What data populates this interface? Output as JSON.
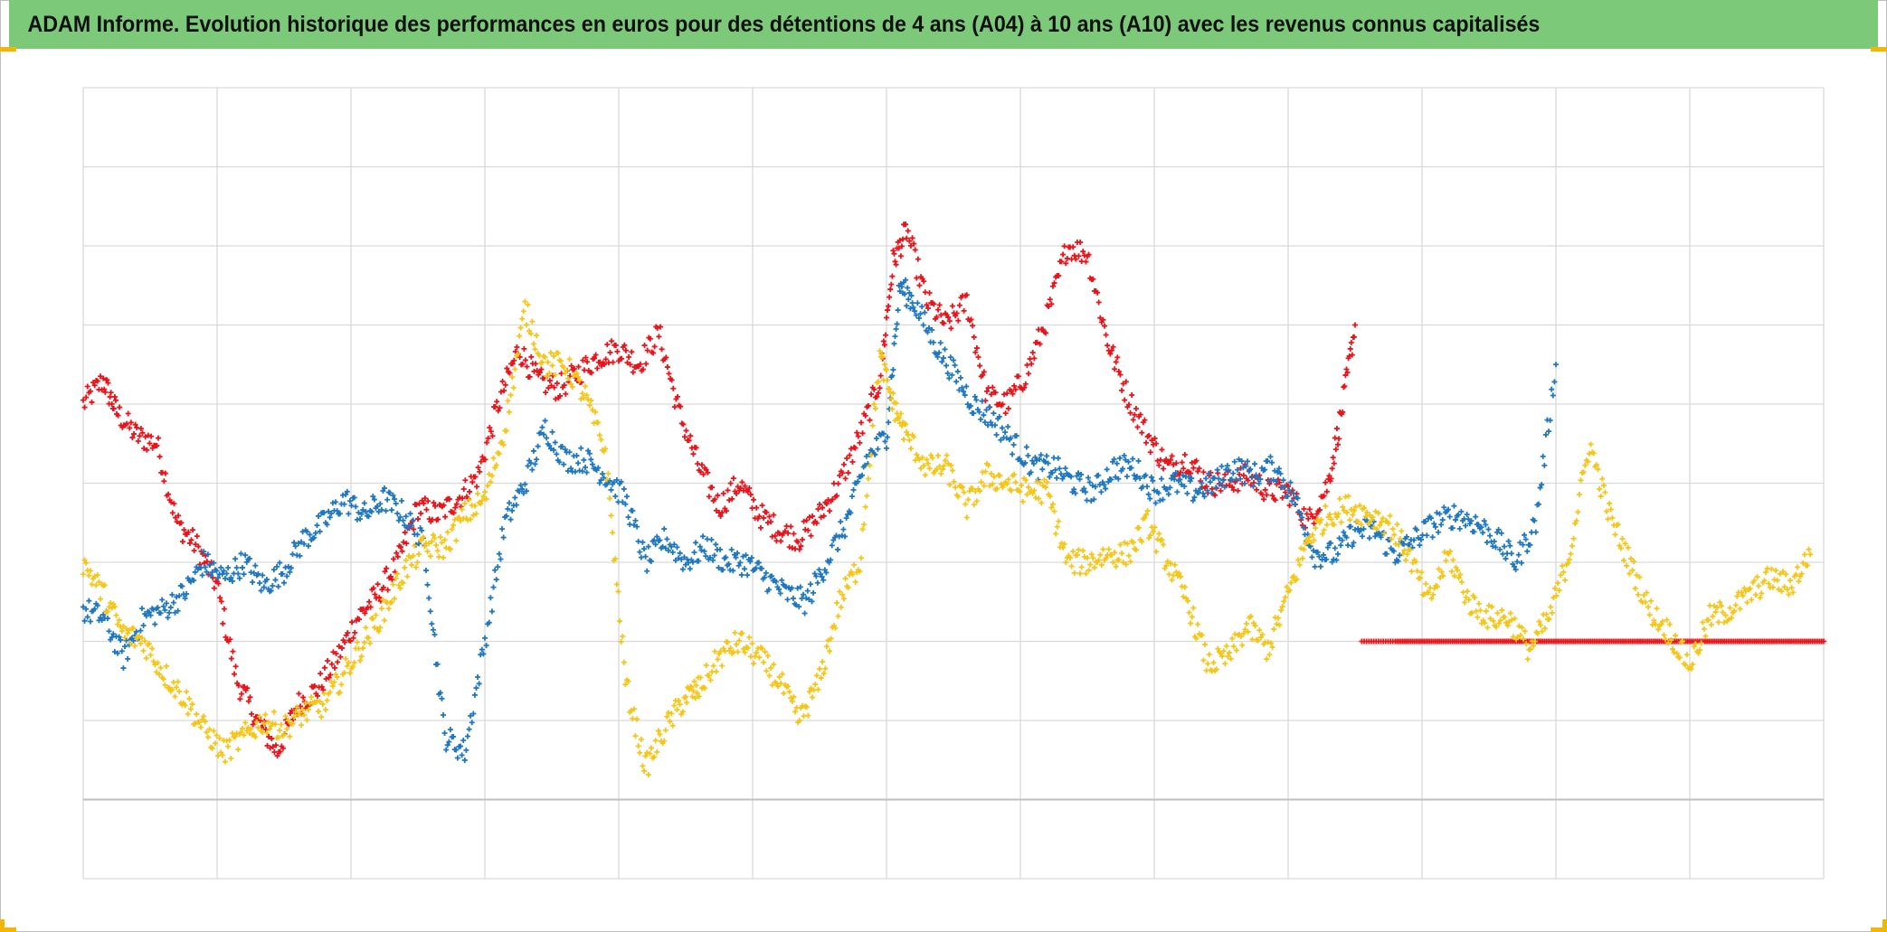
{
  "title": "ADAM Informe. Evolution historique des performances en euros pour des détentions de 4 ans (A04) à 10 ans (A10) avec les revenus connus capitalisés",
  "colors": {
    "title_bar": "#7dc97a",
    "grid": "#d9d9d9",
    "axis": "#bfbfbf",
    "accent_corner": "#f2b705"
  },
  "chart_data": {
    "type": "scatter",
    "marker": "plus",
    "title": "ADAM Informe. Evolution historique des performances en euros pour des détentions de 4 ans (A04) à 10 ans (A10) avec les revenus connus capitalisés",
    "xlabel": "",
    "ylabel": "",
    "xlim": [
      0,
      13
    ],
    "ylim": [
      -1,
      9
    ],
    "grid": true,
    "baseline_y": 0,
    "series": [
      {
        "name": "red",
        "color": "#e8141b",
        "x": [
          0.0,
          0.15,
          0.25,
          0.4,
          0.55,
          0.7,
          0.85,
          1.0,
          1.15,
          1.3,
          1.45,
          1.6,
          1.75,
          1.9,
          2.05,
          2.2,
          2.35,
          2.5,
          2.65,
          2.8,
          2.95,
          3.1,
          3.25,
          3.4,
          3.55,
          3.7,
          3.85,
          4.0,
          4.15,
          4.3,
          4.45,
          4.6,
          4.75,
          4.9,
          5.05,
          5.2,
          5.35,
          5.5,
          5.65,
          5.8,
          5.95,
          6.05,
          6.15,
          6.3,
          6.45,
          6.6,
          6.75,
          6.9,
          7.05,
          7.2,
          7.35,
          7.5,
          7.65,
          7.8,
          7.95,
          8.1,
          8.25,
          8.4,
          8.55,
          8.7,
          8.85,
          9.0,
          9.15,
          9.3,
          9.4,
          9.5
        ],
        "y": [
          5.0,
          5.3,
          4.9,
          4.6,
          4.5,
          3.5,
          3.2,
          2.7,
          1.5,
          1.0,
          0.6,
          1.2,
          1.4,
          1.8,
          2.3,
          2.6,
          3.0,
          3.7,
          3.6,
          3.8,
          4.1,
          5.0,
          5.7,
          5.3,
          5.2,
          5.4,
          5.6,
          5.7,
          5.5,
          5.9,
          4.9,
          4.2,
          3.7,
          4.0,
          3.6,
          3.4,
          3.3,
          3.6,
          4.0,
          4.6,
          5.3,
          6.8,
          7.2,
          6.3,
          6.0,
          6.3,
          5.1,
          5.0,
          5.4,
          6.1,
          7.0,
          6.9,
          5.8,
          5.1,
          4.6,
          4.2,
          4.3,
          4.0,
          4.0,
          4.1,
          3.9,
          3.9,
          3.5,
          4.0,
          4.9,
          6.0
        ]
      },
      {
        "name": "red_flat",
        "color": "#e8141b",
        "x": [
          9.55,
          9.8,
          10.0,
          10.2,
          10.4,
          10.6,
          10.8,
          11.0,
          11.2,
          11.4,
          11.6,
          11.8,
          12.0,
          12.2,
          12.4,
          12.6,
          12.8,
          13.0
        ],
        "y": [
          2.0,
          2.0,
          2.0,
          2.0,
          2.0,
          2.0,
          2.0,
          2.0,
          2.0,
          2.0,
          2.0,
          2.0,
          2.0,
          2.0,
          2.0,
          2.0,
          2.0,
          2.0
        ]
      },
      {
        "name": "blue",
        "color": "#1f77c0",
        "x": [
          0.0,
          0.15,
          0.3,
          0.45,
          0.6,
          0.75,
          0.9,
          1.05,
          1.2,
          1.35,
          1.5,
          1.65,
          1.8,
          1.95,
          2.1,
          2.25,
          2.4,
          2.55,
          2.7,
          2.85,
          3.0,
          3.15,
          3.3,
          3.45,
          3.6,
          3.75,
          3.9,
          4.05,
          4.2,
          4.35,
          4.5,
          4.65,
          4.8,
          4.95,
          5.1,
          5.25,
          5.4,
          5.55,
          5.7,
          5.85,
          6.0,
          6.1,
          6.2,
          6.35,
          6.5,
          6.65,
          6.8,
          6.95,
          7.1,
          7.25,
          7.4,
          7.55,
          7.7,
          7.85,
          8.0,
          8.15,
          8.3,
          8.45,
          8.6,
          8.75,
          8.9,
          9.05,
          9.2,
          9.35,
          9.5,
          9.65,
          9.8,
          9.95,
          10.1,
          10.25,
          10.4,
          10.55,
          10.7,
          10.85,
          11.0
        ],
        "y": [
          2.4,
          2.3,
          1.8,
          2.3,
          2.4,
          2.6,
          3.0,
          2.8,
          3.0,
          2.7,
          2.9,
          3.3,
          3.5,
          3.8,
          3.6,
          3.8,
          3.6,
          3.2,
          0.8,
          0.6,
          2.0,
          3.5,
          4.0,
          4.7,
          4.3,
          4.3,
          4.1,
          3.8,
          3.0,
          3.3,
          3.0,
          3.2,
          3.0,
          3.0,
          2.8,
          2.6,
          2.5,
          3.0,
          3.5,
          4.3,
          4.6,
          6.5,
          6.3,
          5.8,
          5.4,
          5.0,
          4.8,
          4.5,
          4.2,
          4.2,
          4.0,
          3.9,
          4.2,
          4.2,
          3.9,
          4.0,
          3.9,
          4.0,
          4.2,
          4.1,
          4.2,
          3.8,
          3.1,
          3.1,
          3.4,
          3.4,
          3.1,
          3.3,
          3.5,
          3.6,
          3.5,
          3.3,
          3.0,
          3.5,
          5.5
        ]
      },
      {
        "name": "yellow",
        "color": "#f5c518",
        "x": [
          0.0,
          0.15,
          0.3,
          0.45,
          0.6,
          0.75,
          0.9,
          1.05,
          1.2,
          1.35,
          1.5,
          1.65,
          1.8,
          1.95,
          2.1,
          2.25,
          2.4,
          2.55,
          2.7,
          2.85,
          3.0,
          3.15,
          3.3,
          3.45,
          3.6,
          3.75,
          3.9,
          4.05,
          4.2,
          4.35,
          4.5,
          4.6,
          4.75,
          4.9,
          5.05,
          5.2,
          5.35,
          5.5,
          5.65,
          5.8,
          5.95,
          6.05,
          6.15,
          6.3,
          6.45,
          6.6,
          6.75,
          6.9,
          7.05,
          7.2,
          7.35,
          7.5,
          7.65,
          7.8,
          7.95,
          8.1,
          8.25,
          8.4,
          8.55,
          8.7,
          8.85,
          9.0,
          9.15,
          9.3,
          9.45,
          9.6,
          9.75,
          9.9,
          10.05,
          10.2,
          10.35,
          10.5,
          10.65,
          10.8,
          10.95,
          11.1,
          11.25,
          11.4,
          11.55,
          11.7,
          11.85,
          12.0,
          12.15,
          12.3,
          12.45,
          12.6,
          12.75,
          12.9
        ],
        "y": [
          3.0,
          2.6,
          2.1,
          2.0,
          1.6,
          1.3,
          0.9,
          0.6,
          0.8,
          1.0,
          0.9,
          1.1,
          1.2,
          1.6,
          2.0,
          2.4,
          2.9,
          3.2,
          3.2,
          3.6,
          3.8,
          4.7,
          6.2,
          5.5,
          5.5,
          5.1,
          4.4,
          1.5,
          0.4,
          0.9,
          1.3,
          1.4,
          1.8,
          2.0,
          1.8,
          1.5,
          1.0,
          1.5,
          2.5,
          3.0,
          5.6,
          5.0,
          4.6,
          4.2,
          4.2,
          3.7,
          4.1,
          4.0,
          3.9,
          3.9,
          3.0,
          3.0,
          3.1,
          3.1,
          3.5,
          3.0,
          2.5,
          1.7,
          1.8,
          2.2,
          1.9,
          2.6,
          3.3,
          3.6,
          3.7,
          3.6,
          3.5,
          3.1,
          2.5,
          3.1,
          2.5,
          2.3,
          2.3,
          1.9,
          2.3,
          3.1,
          4.5,
          3.6,
          3.0,
          2.4,
          2.1,
          1.7,
          2.3,
          2.4,
          2.6,
          2.8,
          2.7,
          3.1
        ]
      }
    ]
  }
}
